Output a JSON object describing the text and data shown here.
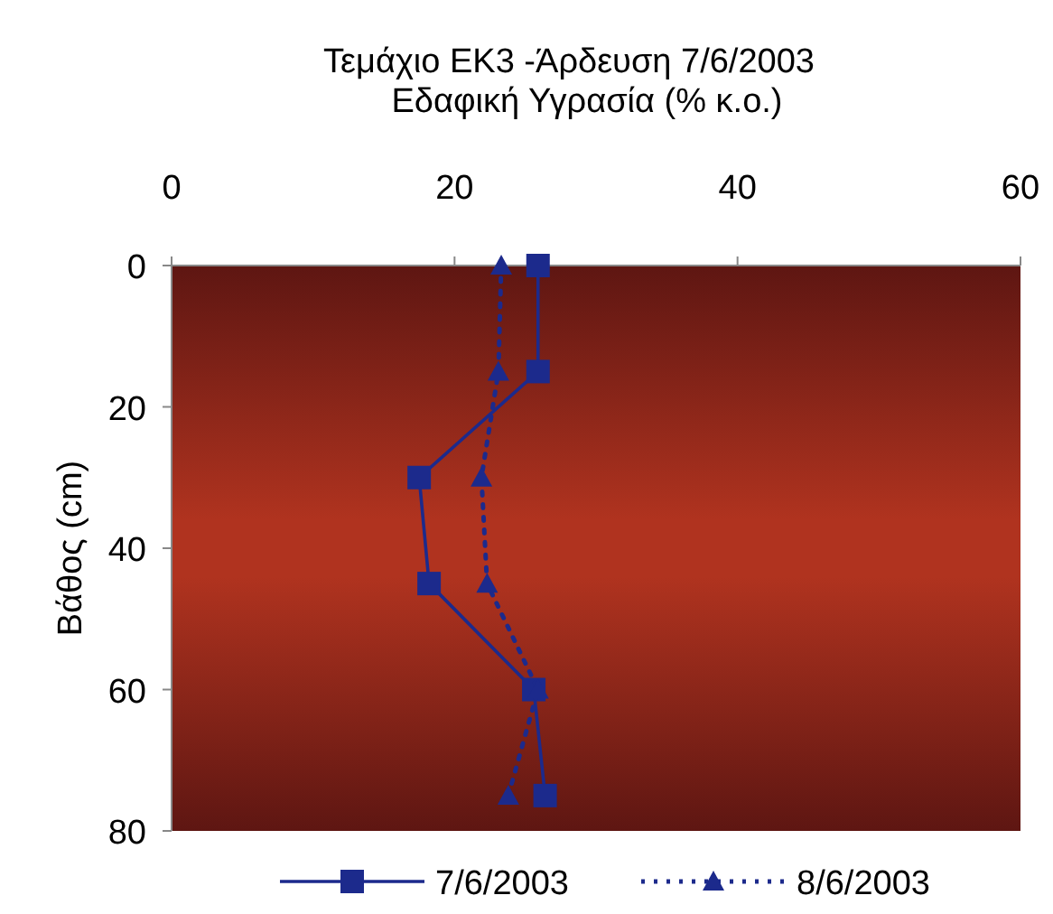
{
  "chart_data": {
    "type": "line",
    "title": "Τεμάχιο ΕΚ3 -Άρδευση 7/6/2003",
    "xlabel": "Εδαφική Υγρασία (% κ.ο.)",
    "ylabel": "Βάθος (cm)",
    "xlim": [
      0,
      60
    ],
    "xticks": [
      0,
      20,
      40,
      60
    ],
    "ylim": [
      80,
      0
    ],
    "yticks": [
      0,
      20,
      40,
      60,
      80
    ],
    "grid": false,
    "legend": "bottom",
    "series": [
      {
        "name": "7/6/2003",
        "color": "#1c2a8c",
        "marker": "square",
        "line_style": "solid",
        "x": [
          25.9,
          25.9,
          17.5,
          18.2,
          25.6,
          26.4
        ],
        "values": [
          0,
          15,
          30,
          45,
          60,
          75
        ]
      },
      {
        "name": "8/6/2003",
        "color": "#1c2a8c",
        "marker": "triangle",
        "line_style": "dotted",
        "x": [
          23.3,
          23.1,
          21.9,
          22.3,
          25.9,
          23.8
        ],
        "values": [
          0,
          15,
          30,
          45,
          60,
          75
        ]
      }
    ]
  }
}
